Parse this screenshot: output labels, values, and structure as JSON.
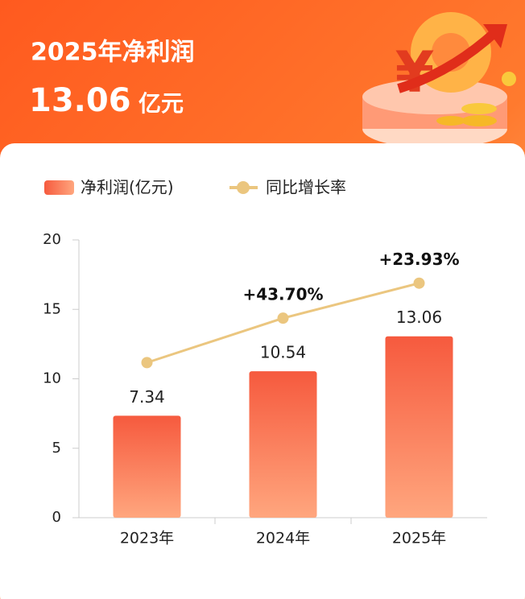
{
  "header": {
    "title": "2025年净利润",
    "value": "13.06",
    "unit": "亿元"
  },
  "chart_data": {
    "type": "bar",
    "categories": [
      "2023年",
      "2024年",
      "2025年"
    ],
    "series": [
      {
        "name": "净利润(亿元)",
        "color": "#f4664a",
        "values": [
          7.34,
          10.54,
          13.06
        ]
      },
      {
        "name": "同比增长率",
        "color": "#ebc67f",
        "axis": "y2",
        "values": [
          null,
          43.7,
          23.93
        ],
        "value_labels": [
          null,
          "+43.70%",
          "+23.93%"
        ]
      }
    ],
    "ylim": [
      0,
      20
    ],
    "yticks": [
      0,
      5,
      10,
      15,
      20
    ]
  }
}
